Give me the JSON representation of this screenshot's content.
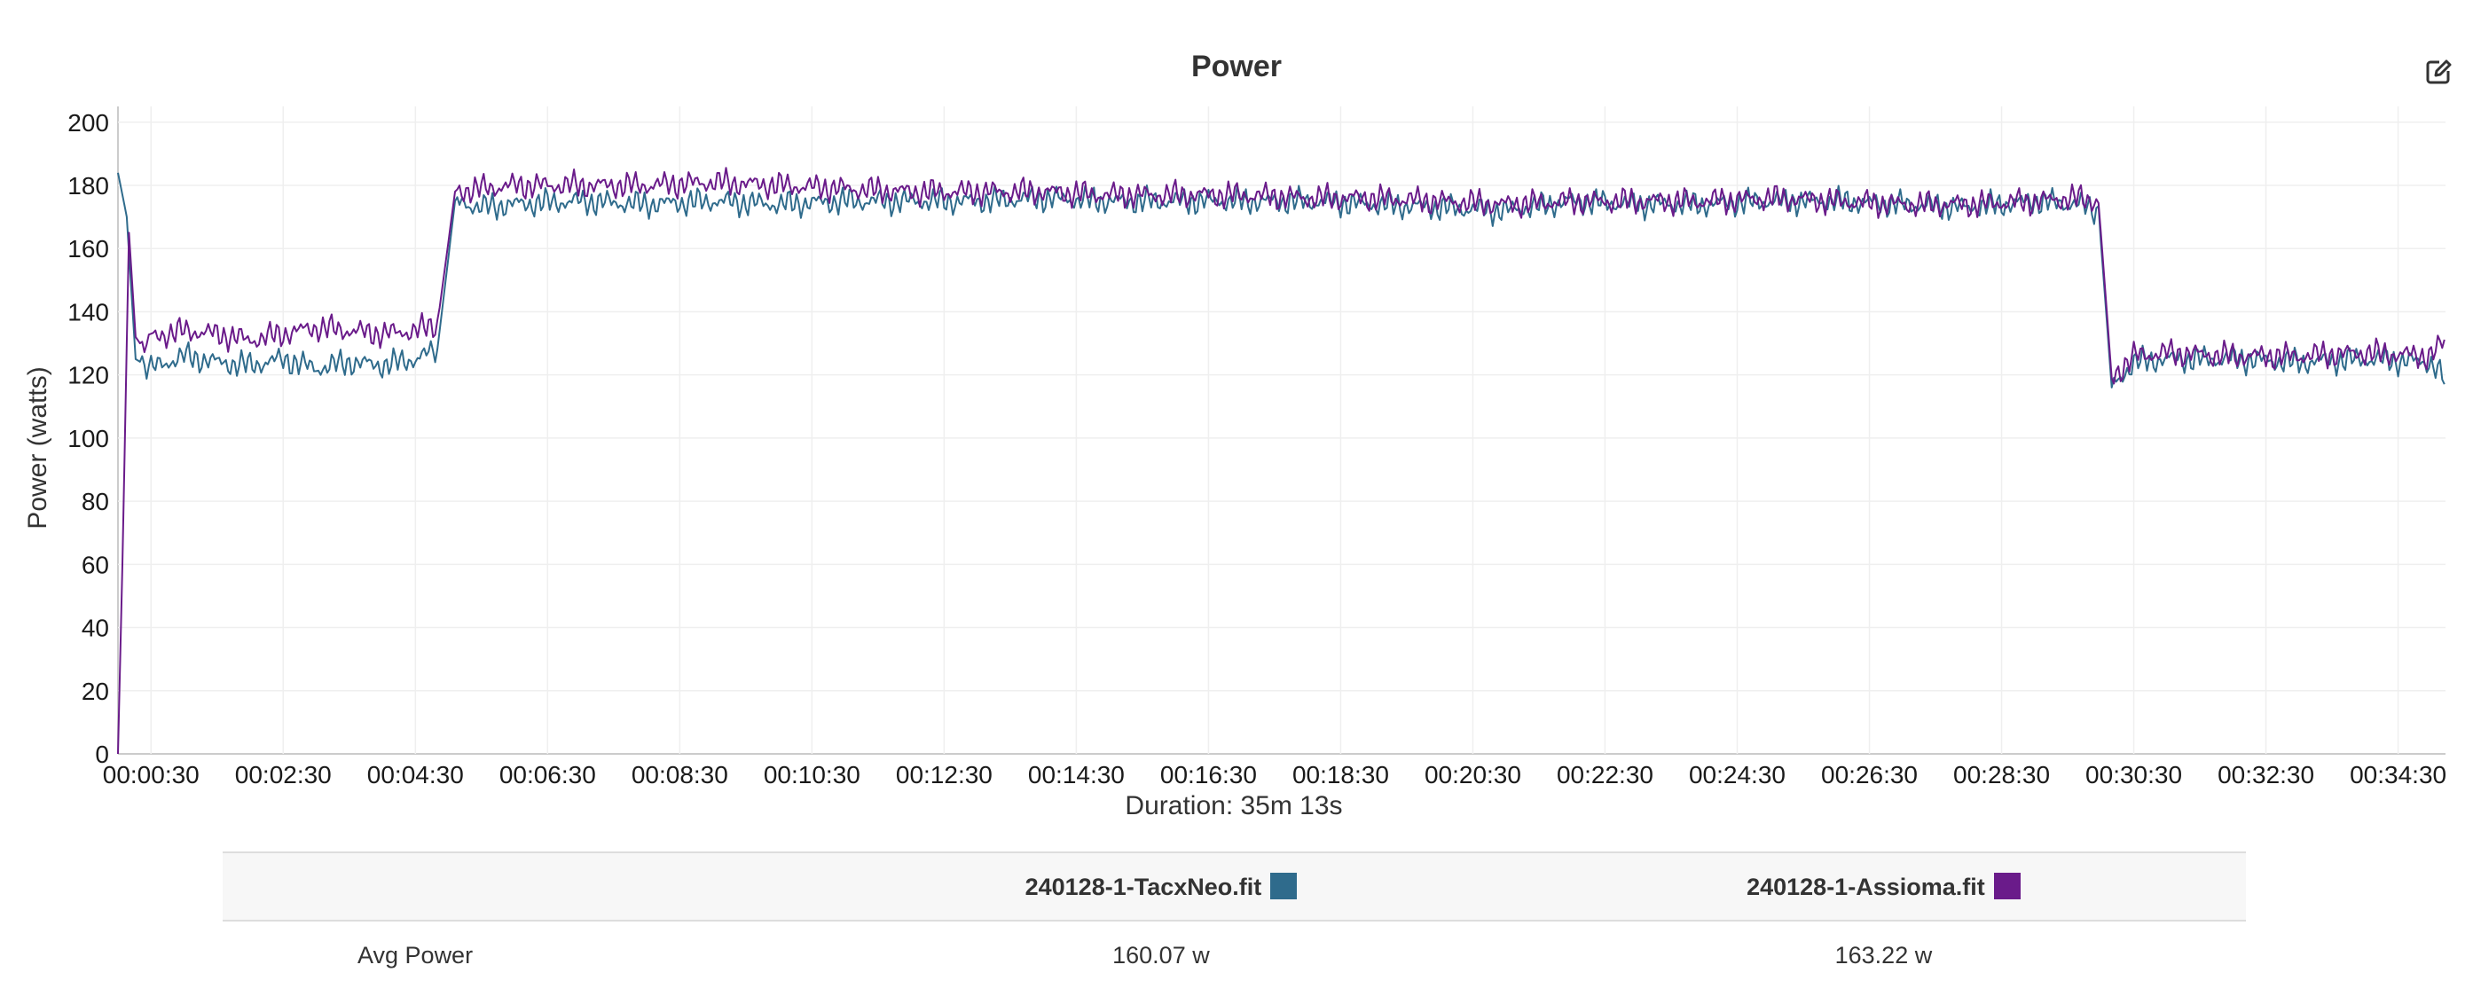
{
  "chart_data": {
    "type": "line",
    "title": "Power",
    "ylabel": "Power (watts)",
    "xlabel": "Duration: 35m 13s",
    "ylim": [
      0,
      205
    ],
    "xlim_seconds": [
      0,
      2113
    ],
    "y_ticks": [
      0,
      20,
      40,
      60,
      80,
      100,
      120,
      140,
      160,
      180,
      200
    ],
    "x_ticks": [
      "00:00:30",
      "00:02:30",
      "00:04:30",
      "00:06:30",
      "00:08:30",
      "00:10:30",
      "00:12:30",
      "00:14:30",
      "00:16:30",
      "00:18:30",
      "00:20:30",
      "00:22:30",
      "00:24:30",
      "00:26:30",
      "00:28:30",
      "00:30:30",
      "00:32:30",
      "00:34:30"
    ],
    "grid": true,
    "series": [
      {
        "name": "240128-1-TacxNeo.fit",
        "color": "#2f6b8c",
        "x": [
          "00:00:00",
          "00:00:08",
          "00:00:16",
          "00:00:30",
          "00:01:00",
          "00:01:30",
          "00:02:00",
          "00:02:30",
          "00:03:00",
          "00:03:30",
          "00:04:00",
          "00:04:30",
          "00:04:50",
          "00:05:06",
          "00:05:30",
          "00:06:00",
          "00:07:00",
          "00:08:00",
          "00:09:00",
          "00:10:00",
          "00:11:00",
          "00:12:00",
          "00:13:00",
          "00:14:00",
          "00:15:00",
          "00:16:00",
          "00:17:00",
          "00:18:00",
          "00:19:00",
          "00:20:00",
          "00:21:00",
          "00:22:00",
          "00:23:00",
          "00:24:00",
          "00:25:00",
          "00:26:00",
          "00:27:00",
          "00:28:00",
          "00:29:00",
          "00:29:40",
          "00:29:58",
          "00:30:10",
          "00:30:30",
          "00:31:00",
          "00:32:00",
          "00:33:00",
          "00:34:00",
          "00:35:00",
          "00:35:13"
        ],
        "values": [
          184,
          170,
          125,
          122,
          126,
          124,
          123,
          125,
          122,
          124,
          123,
          125,
          128,
          175,
          173,
          174,
          175,
          174,
          175,
          174,
          175,
          175,
          175,
          176,
          175,
          175,
          175,
          175,
          174,
          173,
          172,
          175,
          174,
          174,
          175,
          175,
          174,
          173,
          175,
          174,
          172,
          116,
          124,
          125,
          125,
          124,
          125,
          124,
          118
        ]
      },
      {
        "name": "240128-1-Assioma.fit",
        "color": "#6a1b8a",
        "x": [
          "00:00:00",
          "00:00:04",
          "00:00:10",
          "00:00:16",
          "00:00:24",
          "00:00:30",
          "00:01:00",
          "00:01:30",
          "00:02:00",
          "00:02:30",
          "00:03:00",
          "00:03:30",
          "00:04:00",
          "00:04:30",
          "00:04:50",
          "00:05:06",
          "00:05:30",
          "00:06:00",
          "00:07:00",
          "00:08:00",
          "00:09:00",
          "00:10:00",
          "00:11:00",
          "00:12:00",
          "00:13:00",
          "00:14:00",
          "00:15:00",
          "00:16:00",
          "00:17:00",
          "00:18:00",
          "00:19:00",
          "00:20:00",
          "00:21:00",
          "00:22:00",
          "00:23:00",
          "00:24:00",
          "00:25:00",
          "00:26:00",
          "00:27:00",
          "00:28:00",
          "00:29:00",
          "00:29:40",
          "00:29:58",
          "00:30:10",
          "00:30:30",
          "00:31:00",
          "00:32:00",
          "00:33:00",
          "00:34:00",
          "00:35:00",
          "00:35:13"
        ],
        "values": [
          0,
          60,
          165,
          132,
          128,
          132,
          134,
          133,
          131,
          133,
          135,
          134,
          133,
          134,
          136,
          178,
          179,
          180,
          180,
          180,
          181,
          180,
          179,
          178,
          178,
          178,
          177,
          177,
          177,
          176,
          176,
          175,
          174,
          175,
          175,
          175,
          176,
          175,
          174,
          174,
          175,
          176,
          175,
          119,
          126,
          127,
          126,
          126,
          127,
          126,
          131
        ]
      }
    ]
  },
  "table": {
    "headers": [
      "",
      "240128-1-TacxNeo.fit",
      "240128-1-Assioma.fit"
    ],
    "rows": [
      {
        "label": "Avg Power",
        "values": [
          "160.07 w",
          "163.22 w"
        ]
      }
    ]
  }
}
